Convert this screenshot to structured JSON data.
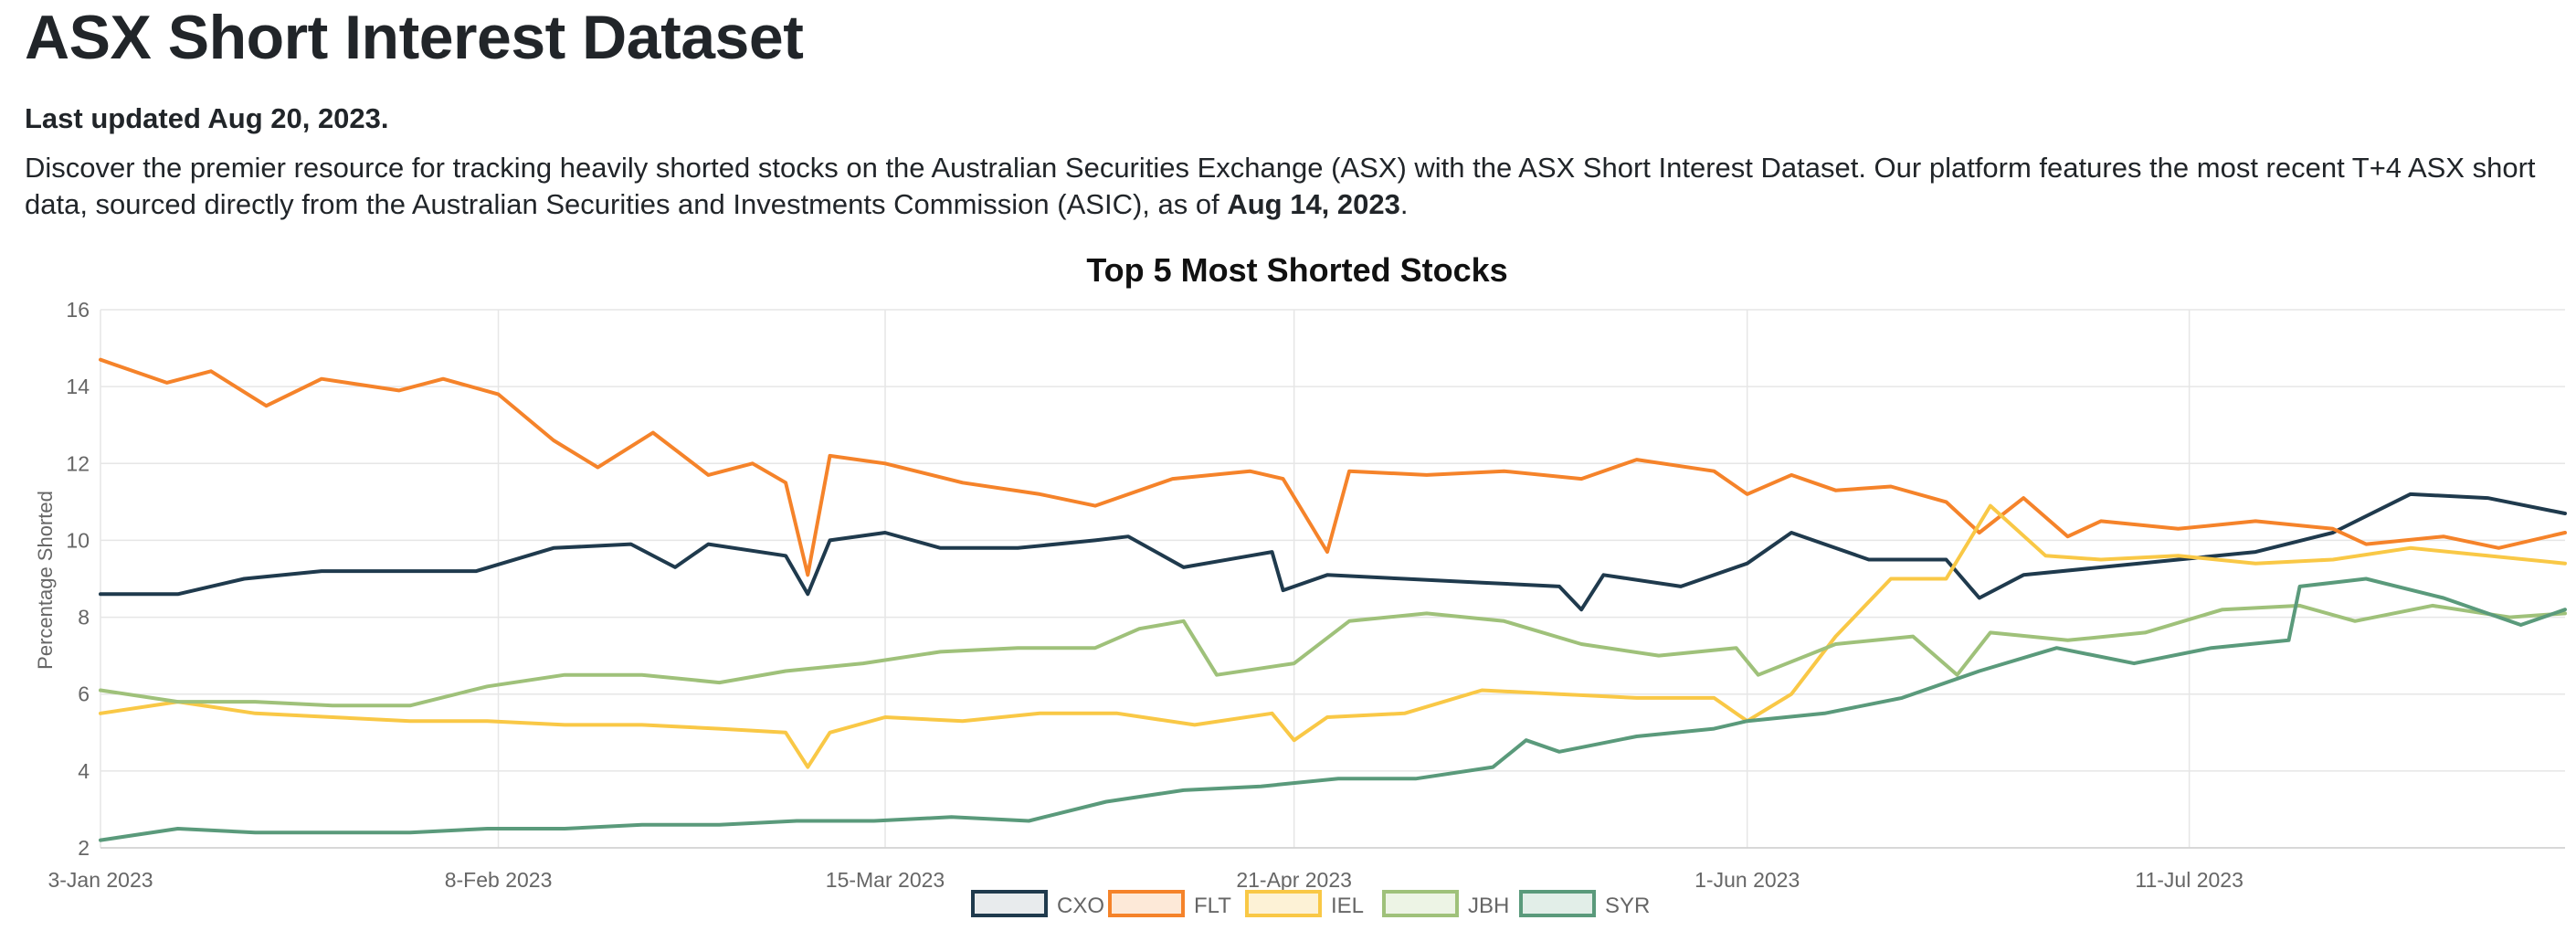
{
  "page": {
    "title": "ASX Short Interest Dataset",
    "last_updated": "Last updated Aug 20, 2023.",
    "intro_text": "Discover the premier resource for tracking heavily shorted stocks on the Australian Securities Exchange (ASX) with the ASX Short Interest Dataset. Our platform features the most recent T+4 ASX short data, sourced directly from the Australian Securities and Investments Commission (ASIC), as of ",
    "intro_date": "Aug 14, 2023",
    "intro_end": "."
  },
  "chart_data": {
    "type": "line",
    "title": "Top 5 Most Shorted Stocks",
    "xlabel": "",
    "ylabel": "Percentage Shorted",
    "ylim": [
      2,
      16
    ],
    "yticks": [
      2,
      4,
      6,
      8,
      10,
      12,
      14,
      16
    ],
    "xlim": [
      "2023-01-03",
      "2023-08-14"
    ],
    "xticks": [
      {
        "date": "2023-01-03",
        "label": "3-Jan 2023"
      },
      {
        "date": "2023-02-08",
        "label": "8-Feb 2023"
      },
      {
        "date": "2023-03-15",
        "label": "15-Mar 2023"
      },
      {
        "date": "2023-04-21",
        "label": "21-Apr 2023"
      },
      {
        "date": "2023-06-01",
        "label": "1-Jun 2023"
      },
      {
        "date": "2023-07-11",
        "label": "11-Jul 2023"
      }
    ],
    "grid": true,
    "legend_position": "bottom",
    "series": [
      {
        "name": "CXO",
        "color": "#1f3a4d",
        "fill": "#e8ebed",
        "points": [
          [
            "2023-01-03",
            8.6
          ],
          [
            "2023-01-10",
            8.6
          ],
          [
            "2023-01-16",
            9.0
          ],
          [
            "2023-01-23",
            9.2
          ],
          [
            "2023-01-30",
            9.2
          ],
          [
            "2023-02-06",
            9.2
          ],
          [
            "2023-02-13",
            9.8
          ],
          [
            "2023-02-20",
            9.9
          ],
          [
            "2023-02-24",
            9.3
          ],
          [
            "2023-02-27",
            9.9
          ],
          [
            "2023-03-06",
            9.6
          ],
          [
            "2023-03-08",
            8.6
          ],
          [
            "2023-03-10",
            10.0
          ],
          [
            "2023-03-15",
            10.2
          ],
          [
            "2023-03-20",
            9.8
          ],
          [
            "2023-03-27",
            9.8
          ],
          [
            "2023-04-03",
            10.0
          ],
          [
            "2023-04-06",
            10.1
          ],
          [
            "2023-04-11",
            9.3
          ],
          [
            "2023-04-17",
            9.6
          ],
          [
            "2023-04-19",
            9.7
          ],
          [
            "2023-04-20",
            8.7
          ],
          [
            "2023-04-24",
            9.1
          ],
          [
            "2023-05-01",
            9.0
          ],
          [
            "2023-05-08",
            8.9
          ],
          [
            "2023-05-15",
            8.8
          ],
          [
            "2023-05-17",
            8.2
          ],
          [
            "2023-05-19",
            9.1
          ],
          [
            "2023-05-26",
            8.8
          ],
          [
            "2023-06-01",
            9.4
          ],
          [
            "2023-06-05",
            10.2
          ],
          [
            "2023-06-12",
            9.5
          ],
          [
            "2023-06-19",
            9.5
          ],
          [
            "2023-06-22",
            8.5
          ],
          [
            "2023-06-26",
            9.1
          ],
          [
            "2023-07-03",
            9.3
          ],
          [
            "2023-07-10",
            9.5
          ],
          [
            "2023-07-17",
            9.7
          ],
          [
            "2023-07-24",
            10.2
          ],
          [
            "2023-07-31",
            11.2
          ],
          [
            "2023-08-07",
            11.1
          ],
          [
            "2023-08-14",
            10.7
          ]
        ]
      },
      {
        "name": "FLT",
        "color": "#f5832a",
        "fill": "#fde9d8",
        "points": [
          [
            "2023-01-03",
            14.7
          ],
          [
            "2023-01-09",
            14.1
          ],
          [
            "2023-01-13",
            14.4
          ],
          [
            "2023-01-18",
            13.5
          ],
          [
            "2023-01-23",
            14.2
          ],
          [
            "2023-01-30",
            13.9
          ],
          [
            "2023-02-03",
            14.2
          ],
          [
            "2023-02-08",
            13.8
          ],
          [
            "2023-02-13",
            12.6
          ],
          [
            "2023-02-17",
            11.9
          ],
          [
            "2023-02-22",
            12.8
          ],
          [
            "2023-02-27",
            11.7
          ],
          [
            "2023-03-03",
            12.0
          ],
          [
            "2023-03-06",
            11.5
          ],
          [
            "2023-03-08",
            9.1
          ],
          [
            "2023-03-10",
            12.2
          ],
          [
            "2023-03-15",
            12.0
          ],
          [
            "2023-03-22",
            11.5
          ],
          [
            "2023-03-29",
            11.2
          ],
          [
            "2023-04-03",
            10.9
          ],
          [
            "2023-04-10",
            11.6
          ],
          [
            "2023-04-17",
            11.8
          ],
          [
            "2023-04-20",
            11.6
          ],
          [
            "2023-04-24",
            9.7
          ],
          [
            "2023-04-26",
            11.8
          ],
          [
            "2023-05-03",
            11.7
          ],
          [
            "2023-05-10",
            11.8
          ],
          [
            "2023-05-17",
            11.6
          ],
          [
            "2023-05-22",
            12.1
          ],
          [
            "2023-05-29",
            11.8
          ],
          [
            "2023-06-01",
            11.2
          ],
          [
            "2023-06-05",
            11.7
          ],
          [
            "2023-06-09",
            11.3
          ],
          [
            "2023-06-14",
            11.4
          ],
          [
            "2023-06-19",
            11.0
          ],
          [
            "2023-06-22",
            10.2
          ],
          [
            "2023-06-26",
            11.1
          ],
          [
            "2023-06-30",
            10.1
          ],
          [
            "2023-07-03",
            10.5
          ],
          [
            "2023-07-10",
            10.3
          ],
          [
            "2023-07-17",
            10.5
          ],
          [
            "2023-07-24",
            10.3
          ],
          [
            "2023-07-27",
            9.9
          ],
          [
            "2023-08-03",
            10.1
          ],
          [
            "2023-08-08",
            9.8
          ],
          [
            "2023-08-14",
            10.2
          ]
        ]
      },
      {
        "name": "IEL",
        "color": "#f9c846",
        "fill": "#fdf2d6",
        "points": [
          [
            "2023-01-03",
            5.5
          ],
          [
            "2023-01-10",
            5.8
          ],
          [
            "2023-01-17",
            5.5
          ],
          [
            "2023-01-24",
            5.4
          ],
          [
            "2023-01-31",
            5.3
          ],
          [
            "2023-02-07",
            5.3
          ],
          [
            "2023-02-14",
            5.2
          ],
          [
            "2023-02-21",
            5.2
          ],
          [
            "2023-02-28",
            5.1
          ],
          [
            "2023-03-06",
            5.0
          ],
          [
            "2023-03-08",
            4.1
          ],
          [
            "2023-03-10",
            5.0
          ],
          [
            "2023-03-15",
            5.4
          ],
          [
            "2023-03-22",
            5.3
          ],
          [
            "2023-03-29",
            5.5
          ],
          [
            "2023-04-05",
            5.5
          ],
          [
            "2023-04-12",
            5.2
          ],
          [
            "2023-04-19",
            5.5
          ],
          [
            "2023-04-21",
            4.8
          ],
          [
            "2023-04-24",
            5.4
          ],
          [
            "2023-05-01",
            5.5
          ],
          [
            "2023-05-08",
            6.1
          ],
          [
            "2023-05-15",
            6.0
          ],
          [
            "2023-05-22",
            5.9
          ],
          [
            "2023-05-29",
            5.9
          ],
          [
            "2023-06-01",
            5.3
          ],
          [
            "2023-06-05",
            6.0
          ],
          [
            "2023-06-09",
            7.5
          ],
          [
            "2023-06-14",
            9.0
          ],
          [
            "2023-06-19",
            9.0
          ],
          [
            "2023-06-23",
            10.9
          ],
          [
            "2023-06-28",
            9.6
          ],
          [
            "2023-07-03",
            9.5
          ],
          [
            "2023-07-10",
            9.6
          ],
          [
            "2023-07-17",
            9.4
          ],
          [
            "2023-07-24",
            9.5
          ],
          [
            "2023-07-31",
            9.8
          ],
          [
            "2023-08-07",
            9.6
          ],
          [
            "2023-08-14",
            9.4
          ]
        ]
      },
      {
        "name": "JBH",
        "color": "#9fc17a",
        "fill": "#edf4e5",
        "points": [
          [
            "2023-01-03",
            6.1
          ],
          [
            "2023-01-10",
            5.8
          ],
          [
            "2023-01-17",
            5.8
          ],
          [
            "2023-01-24",
            5.7
          ],
          [
            "2023-01-31",
            5.7
          ],
          [
            "2023-02-07",
            6.2
          ],
          [
            "2023-02-14",
            6.5
          ],
          [
            "2023-02-21",
            6.5
          ],
          [
            "2023-02-28",
            6.3
          ],
          [
            "2023-03-06",
            6.6
          ],
          [
            "2023-03-13",
            6.8
          ],
          [
            "2023-03-20",
            7.1
          ],
          [
            "2023-03-27",
            7.2
          ],
          [
            "2023-04-03",
            7.2
          ],
          [
            "2023-04-07",
            7.7
          ],
          [
            "2023-04-11",
            7.9
          ],
          [
            "2023-04-14",
            6.5
          ],
          [
            "2023-04-21",
            6.8
          ],
          [
            "2023-04-26",
            7.9
          ],
          [
            "2023-05-03",
            8.1
          ],
          [
            "2023-05-10",
            7.9
          ],
          [
            "2023-05-17",
            7.3
          ],
          [
            "2023-05-24",
            7.0
          ],
          [
            "2023-05-31",
            7.2
          ],
          [
            "2023-06-02",
            6.5
          ],
          [
            "2023-06-09",
            7.3
          ],
          [
            "2023-06-16",
            7.5
          ],
          [
            "2023-06-20",
            6.5
          ],
          [
            "2023-06-23",
            7.6
          ],
          [
            "2023-06-30",
            7.4
          ],
          [
            "2023-07-07",
            7.6
          ],
          [
            "2023-07-14",
            8.2
          ],
          [
            "2023-07-21",
            8.3
          ],
          [
            "2023-07-26",
            7.9
          ],
          [
            "2023-08-02",
            8.3
          ],
          [
            "2023-08-09",
            8.0
          ],
          [
            "2023-08-14",
            8.1
          ]
        ]
      },
      {
        "name": "SYR",
        "color": "#5a9a7b",
        "fill": "#e2eee8",
        "points": [
          [
            "2023-01-03",
            2.2
          ],
          [
            "2023-01-10",
            2.5
          ],
          [
            "2023-01-17",
            2.4
          ],
          [
            "2023-01-24",
            2.4
          ],
          [
            "2023-01-31",
            2.4
          ],
          [
            "2023-02-07",
            2.5
          ],
          [
            "2023-02-14",
            2.5
          ],
          [
            "2023-02-21",
            2.6
          ],
          [
            "2023-02-28",
            2.6
          ],
          [
            "2023-03-07",
            2.7
          ],
          [
            "2023-03-14",
            2.7
          ],
          [
            "2023-03-21",
            2.8
          ],
          [
            "2023-03-28",
            2.7
          ],
          [
            "2023-04-04",
            3.2
          ],
          [
            "2023-04-11",
            3.5
          ],
          [
            "2023-04-18",
            3.6
          ],
          [
            "2023-04-25",
            3.8
          ],
          [
            "2023-05-02",
            3.8
          ],
          [
            "2023-05-09",
            4.1
          ],
          [
            "2023-05-12",
            4.8
          ],
          [
            "2023-05-15",
            4.5
          ],
          [
            "2023-05-22",
            4.9
          ],
          [
            "2023-05-29",
            5.1
          ],
          [
            "2023-06-01",
            5.3
          ],
          [
            "2023-06-08",
            5.5
          ],
          [
            "2023-06-15",
            5.9
          ],
          [
            "2023-06-22",
            6.6
          ],
          [
            "2023-06-29",
            7.2
          ],
          [
            "2023-07-06",
            6.8
          ],
          [
            "2023-07-13",
            7.2
          ],
          [
            "2023-07-20",
            7.4
          ],
          [
            "2023-07-21",
            8.8
          ],
          [
            "2023-07-27",
            9.0
          ],
          [
            "2023-08-03",
            8.5
          ],
          [
            "2023-08-10",
            7.8
          ],
          [
            "2023-08-14",
            8.2
          ]
        ]
      }
    ]
  }
}
